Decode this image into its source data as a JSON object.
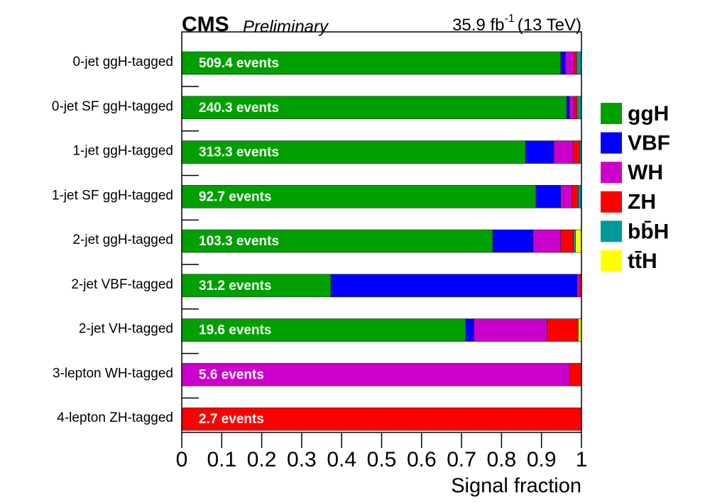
{
  "chart_data": {
    "type": "stacked-barh",
    "experiment": "CMS",
    "status": "Preliminary",
    "lumi": "35.9 fb",
    "lumi_exponent": "-1",
    "energy": "(13 TeV)",
    "x_label": "Signal fraction",
    "categories": [
      "0-jet ggH-tagged",
      "0-jet SF ggH-tagged",
      "1-jet ggH-tagged",
      "1-jet SF ggH-tagged",
      "2-jet ggH-tagged",
      "2-jet VBF-tagged",
      "2-jet VH-tagged",
      "3-lepton WH-tagged",
      "4-lepton ZH-tagged"
    ],
    "bar_labels": [
      "509.4 events",
      "240.3 events",
      "313.3 events",
      "92.7 events",
      "103.3 events",
      "31.2 events",
      "19.6 events",
      "5.6 events",
      "2.7 events"
    ],
    "series": [
      {
        "name": "ggH",
        "color": "#00a000",
        "values": [
          0.948,
          0.963,
          0.86,
          0.886,
          0.778,
          0.373,
          0.71,
          0,
          0
        ]
      },
      {
        "name": "VBF",
        "color": "#0000ff",
        "values": [
          0.012,
          0.007,
          0.071,
          0.062,
          0.101,
          0.616,
          0.021,
          0,
          0
        ]
      },
      {
        "name": "WH",
        "color": "#cc00cc",
        "values": [
          0.021,
          0.012,
          0.048,
          0.028,
          0.069,
          0.007,
          0.183,
          0.97,
          0
        ]
      },
      {
        "name": "ZH",
        "color": "#ff0000",
        "values": [
          0.007,
          0.007,
          0.016,
          0.016,
          0.032,
          0.004,
          0.078,
          0.03,
          1
        ]
      },
      {
        "name": "bb̄H",
        "color": "#009999",
        "values": [
          0.012,
          0.011,
          0.005,
          0.008,
          0.005,
          0,
          0,
          0,
          0
        ]
      },
      {
        "name": "tt̄H",
        "color": "#ffff00",
        "values": [
          0,
          0,
          0,
          0,
          0.015,
          0,
          0.008,
          0,
          0
        ]
      }
    ],
    "xlim": [
      0,
      1
    ],
    "xticks": [
      0,
      0.1,
      0.2,
      0.3,
      0.4,
      0.5,
      0.6,
      0.7,
      0.8,
      0.9,
      1
    ],
    "legend": "right"
  }
}
